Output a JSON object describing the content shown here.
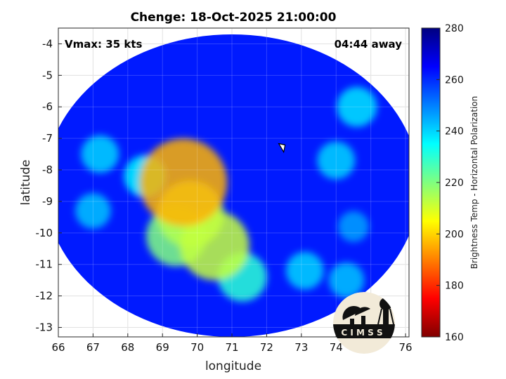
{
  "chart_data": {
    "type": "heatmap",
    "title": "Chenge: 18-Oct-2025 21:00:00",
    "xlabel": "longitude",
    "ylabel": "latitude",
    "xlim": [
      66,
      76.1
    ],
    "ylim": [
      -13.3,
      -3.5
    ],
    "xticks": [
      66,
      67,
      68,
      69,
      70,
      71,
      72,
      73,
      74,
      75,
      76
    ],
    "yticks": [
      -4,
      -5,
      -6,
      -7,
      -8,
      -9,
      -10,
      -11,
      -12,
      -13
    ],
    "grid": true,
    "annotations": {
      "vmax": "Vmax: 35 kts",
      "time_away": "04:44 away"
    },
    "storm_center": {
      "lon": 72.45,
      "lat": -7.3
    },
    "swath": {
      "center_lon": 71.0,
      "center_lat": -8.5,
      "radius_lon": 5.4,
      "radius_lat": 4.8,
      "base_value": 262
    },
    "cold_features": [
      {
        "lon": 69.6,
        "lat": -8.4,
        "value": 196
      },
      {
        "lon": 69.8,
        "lat": -9.4,
        "value": 214
      },
      {
        "lon": 70.5,
        "lat": -10.4,
        "value": 212
      },
      {
        "lon": 69.4,
        "lat": -10.1,
        "value": 220
      },
      {
        "lon": 71.3,
        "lat": -11.4,
        "value": 230
      },
      {
        "lon": 68.5,
        "lat": -8.2,
        "value": 236
      },
      {
        "lon": 67.2,
        "lat": -7.5,
        "value": 240
      },
      {
        "lon": 67.0,
        "lat": -9.3,
        "value": 242
      },
      {
        "lon": 73.1,
        "lat": -11.2,
        "value": 240
      },
      {
        "lon": 74.3,
        "lat": -11.5,
        "value": 242
      },
      {
        "lon": 74.0,
        "lat": -7.7,
        "value": 240
      },
      {
        "lon": 74.6,
        "lat": -6.0,
        "value": 238
      },
      {
        "lon": 74.5,
        "lat": -9.8,
        "value": 246
      }
    ],
    "colorbar": {
      "min": 160,
      "max": 280,
      "ticks": [
        160,
        180,
        200,
        220,
        240,
        260,
        280
      ],
      "label": "Brightness Temp - Horizontal Polarization",
      "colormap": "jet"
    },
    "logo_text": "C I M S S"
  }
}
